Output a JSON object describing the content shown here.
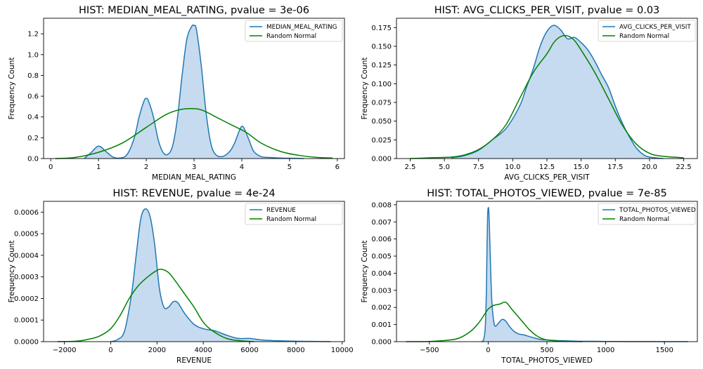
{
  "chart_data": [
    {
      "type": "area",
      "title": "HIST: MEDIAN_MEAL_RATING, pvalue = 3e-06",
      "xlabel": "MEDIAN_MEAL_RATING",
      "ylabel": "Frequency Count",
      "xlim": [
        -0.15,
        6.15
      ],
      "ylim": [
        0,
        1.35
      ],
      "xticks": [
        0,
        1,
        2,
        3,
        4,
        5,
        6
      ],
      "xtick_labels": [
        "0",
        "1",
        "2",
        "3",
        "4",
        "5",
        "6"
      ],
      "yticks": [
        0,
        0.2,
        0.4,
        0.6,
        0.8,
        1.0,
        1.2
      ],
      "ytick_labels": [
        "0.0",
        "0.2",
        "0.4",
        "0.6",
        "0.8",
        "1.0",
        "1.2"
      ],
      "grid": false,
      "legend_position": "top-right",
      "colors": {
        "data": "#1f77b4",
        "fill": "#c6dbef",
        "normal": "#008000"
      },
      "series": [
        {
          "name": "MEDIAN_MEAL_RATING",
          "style": "filled-line",
          "x": [
            0.7,
            0.85,
            1.0,
            1.15,
            1.3,
            1.45,
            1.6,
            1.75,
            1.85,
            1.95,
            2.0,
            2.05,
            2.15,
            2.25,
            2.35,
            2.45,
            2.55,
            2.65,
            2.75,
            2.85,
            2.95,
            3.0,
            3.05,
            3.15,
            3.25,
            3.35,
            3.45,
            3.6,
            3.75,
            3.85,
            3.95,
            4.0,
            4.05,
            4.15,
            4.25,
            4.4,
            4.6,
            4.8,
            5.0,
            5.2,
            5.3
          ],
          "y": [
            0,
            0.06,
            0.12,
            0.07,
            0.015,
            0.005,
            0.04,
            0.2,
            0.4,
            0.55,
            0.58,
            0.55,
            0.4,
            0.18,
            0.06,
            0.04,
            0.12,
            0.38,
            0.8,
            1.15,
            1.27,
            1.28,
            1.24,
            0.9,
            0.45,
            0.15,
            0.04,
            0.02,
            0.07,
            0.15,
            0.27,
            0.31,
            0.29,
            0.18,
            0.07,
            0.02,
            0.01,
            0.005,
            0.003,
            0.002,
            0.0
          ]
        },
        {
          "name": "Random Normal",
          "style": "line",
          "x": [
            0.1,
            0.5,
            1.0,
            1.5,
            2.0,
            2.4,
            2.7,
            3.0,
            3.2,
            3.5,
            3.8,
            4.1,
            4.4,
            4.8,
            5.2,
            5.6,
            5.9
          ],
          "y": [
            0,
            0.01,
            0.06,
            0.15,
            0.3,
            0.42,
            0.47,
            0.48,
            0.46,
            0.39,
            0.32,
            0.25,
            0.15,
            0.07,
            0.03,
            0.01,
            0.005
          ]
        }
      ]
    },
    {
      "type": "area",
      "title": "HIST: AVG_CLICKS_PER_VISIT, pvalue = 0.03",
      "xlabel": "AVG_CLICKS_PER_VISIT",
      "ylabel": "Frequency Count",
      "xlim": [
        1.5,
        23.5
      ],
      "ylim": [
        0,
        0.1875
      ],
      "xticks": [
        2.5,
        5.0,
        7.5,
        10.0,
        12.5,
        15.0,
        17.5,
        20.0,
        22.5
      ],
      "xtick_labels": [
        "2.5",
        "5.0",
        "7.5",
        "10.0",
        "12.5",
        "15.0",
        "17.5",
        "20.0",
        "22.5"
      ],
      "yticks": [
        0,
        0.025,
        0.05,
        0.075,
        0.1,
        0.125,
        0.15,
        0.175
      ],
      "ytick_labels": [
        "0.000",
        "0.025",
        "0.050",
        "0.075",
        "0.100",
        "0.125",
        "0.150",
        "0.175"
      ],
      "grid": false,
      "legend_position": "top-right",
      "colors": {
        "data": "#1f77b4",
        "fill": "#c6dbef",
        "normal": "#008000"
      },
      "series": [
        {
          "name": "AVG_CLICKS_PER_VISIT",
          "style": "filled-line",
          "x": [
            5.5,
            6.5,
            7.5,
            8.5,
            9.5,
            10.5,
            11.0,
            11.5,
            12.0,
            12.5,
            13.0,
            13.5,
            14.0,
            14.5,
            15.0,
            15.5,
            16.0,
            16.5,
            17.0,
            17.5,
            18.0,
            18.5,
            19.0,
            19.5,
            20.0,
            21.0
          ],
          "y": [
            0.001,
            0.004,
            0.011,
            0.025,
            0.04,
            0.07,
            0.095,
            0.12,
            0.15,
            0.17,
            0.178,
            0.172,
            0.16,
            0.162,
            0.155,
            0.145,
            0.13,
            0.112,
            0.095,
            0.07,
            0.048,
            0.03,
            0.015,
            0.006,
            0.002,
            0.0
          ]
        },
        {
          "name": "Random Normal",
          "style": "line",
          "x": [
            2.5,
            4.0,
            5.5,
            6.5,
            7.5,
            8.5,
            9.5,
            10.5,
            11.5,
            12.5,
            13.0,
            13.5,
            14.0,
            14.5,
            15.0,
            16.0,
            17.0,
            18.0,
            19.0,
            20.0,
            21.0,
            22.5
          ],
          "y": [
            0,
            0.001,
            0.002,
            0.005,
            0.012,
            0.025,
            0.045,
            0.08,
            0.115,
            0.14,
            0.155,
            0.163,
            0.164,
            0.158,
            0.145,
            0.115,
            0.08,
            0.045,
            0.02,
            0.007,
            0.003,
            0.001
          ]
        }
      ]
    },
    {
      "type": "area",
      "title": "HIST: REVENUE, pvalue = 4e-24",
      "xlabel": "REVENUE",
      "ylabel": "Frequency Count",
      "xlim": [
        -2900,
        10100
      ],
      "ylim": [
        0,
        0.00065
      ],
      "xticks": [
        -2000,
        0,
        2000,
        4000,
        6000,
        8000,
        10000
      ],
      "xtick_labels": [
        "−2000",
        "0",
        "2000",
        "4000",
        "6000",
        "8000",
        "10000"
      ],
      "yticks": [
        0,
        0.0001,
        0.0002,
        0.0003,
        0.0004,
        0.0005,
        0.0006
      ],
      "ytick_labels": [
        "0.0000",
        "0.0001",
        "0.0002",
        "0.0003",
        "0.0004",
        "0.0005",
        "0.0006"
      ],
      "grid": false,
      "legend_position": "top-right",
      "colors": {
        "data": "#1f77b4",
        "fill": "#c6dbef",
        "normal": "#008000"
      },
      "series": [
        {
          "name": "REVENUE",
          "style": "filled-line",
          "x": [
            0,
            300,
            600,
            900,
            1100,
            1300,
            1500,
            1700,
            1900,
            2100,
            2300,
            2500,
            2700,
            2900,
            3200,
            3600,
            4000,
            4500,
            5000,
            5500,
            6000,
            6500,
            7000,
            8000,
            9000,
            9500
          ],
          "y": [
            0,
            1e-05,
            5e-05,
            0.00022,
            0.0004,
            0.00057,
            0.000615,
            0.00058,
            0.00045,
            0.00025,
            0.00016,
            0.00016,
            0.000185,
            0.00018,
            0.00013,
            8e-05,
            6e-05,
            5e-05,
            3e-05,
            1.5e-05,
            1.5e-05,
            8e-06,
            5e-06,
            2e-06,
            1e-06,
            0
          ]
        },
        {
          "name": "Random Normal",
          "style": "line",
          "x": [
            -2300,
            -1500,
            -1000,
            -500,
            0,
            400,
            800,
            1200,
            1600,
            2000,
            2200,
            2500,
            2800,
            3200,
            3600,
            4000,
            4400,
            5000,
            5600,
            6200
          ],
          "y": [
            0,
            2e-06,
            1e-05,
            2.5e-05,
            6e-05,
            0.00012,
            0.0002,
            0.00026,
            0.0003,
            0.00033,
            0.000335,
            0.00032,
            0.00028,
            0.00022,
            0.00016,
            9e-05,
            5e-05,
            1.5e-05,
            4e-06,
            0
          ]
        }
      ]
    },
    {
      "type": "area",
      "title": "HIST: TOTAL_PHOTOS_VIEWED, pvalue = 7e-85",
      "xlabel": "TOTAL_PHOTOS_VIEWED",
      "ylabel": "Frequency Count",
      "xlim": [
        -780,
        1780
      ],
      "ylim": [
        0,
        0.0082
      ],
      "xticks": [
        -500,
        0,
        500,
        1000,
        1500
      ],
      "xtick_labels": [
        "−500",
        "0",
        "500",
        "1000",
        "1500"
      ],
      "yticks": [
        0,
        0.001,
        0.002,
        0.003,
        0.004,
        0.005,
        0.006,
        0.007,
        0.008
      ],
      "ytick_labels": [
        "0.000",
        "0.001",
        "0.002",
        "0.003",
        "0.004",
        "0.005",
        "0.006",
        "0.007",
        "0.008"
      ],
      "grid": false,
      "legend_position": "top-right",
      "colors": {
        "data": "#1f77b4",
        "fill": "#c6dbef",
        "normal": "#008000"
      },
      "series": [
        {
          "name": "TOTAL_PHOTOS_VIEWED",
          "style": "filled-line",
          "x": [
            -60,
            -40,
            -25,
            -15,
            -10,
            -5,
            0,
            5,
            10,
            20,
            30,
            45,
            60,
            90,
            120,
            150,
            180,
            220,
            260,
            300,
            350,
            400,
            450,
            500,
            600,
            700,
            800,
            900,
            1000,
            1100,
            1200,
            1400,
            1600,
            1700
          ],
          "y": [
            0,
            0.0001,
            0.0008,
            0.003,
            0.0055,
            0.0073,
            0.0078,
            0.0077,
            0.0068,
            0.0045,
            0.0025,
            0.0013,
            0.0009,
            0.0011,
            0.0013,
            0.0012,
            0.0009,
            0.0006,
            0.00045,
            0.0004,
            0.0003,
            0.0002,
            0.00012,
            0.0001,
            6e-05,
            4e-05,
            2e-05,
            2e-05,
            1e-05,
            1e-05,
            5e-06,
            3e-06,
            1e-06,
            0
          ]
        },
        {
          "name": "Random Normal",
          "style": "line",
          "x": [
            -700,
            -500,
            -350,
            -250,
            -150,
            -80,
            -30,
            0,
            40,
            100,
            150,
            200,
            250,
            300,
            350,
            400,
            450,
            500,
            600,
            700,
            800
          ],
          "y": [
            0,
            1e-05,
            8e-05,
            0.0002,
            0.0006,
            0.0011,
            0.0016,
            0.0019,
            0.0021,
            0.0022,
            0.0023,
            0.0019,
            0.0015,
            0.0011,
            0.0007,
            0.0004,
            0.0002,
            0.0001,
            3e-05,
            1e-05,
            0
          ]
        }
      ]
    }
  ]
}
